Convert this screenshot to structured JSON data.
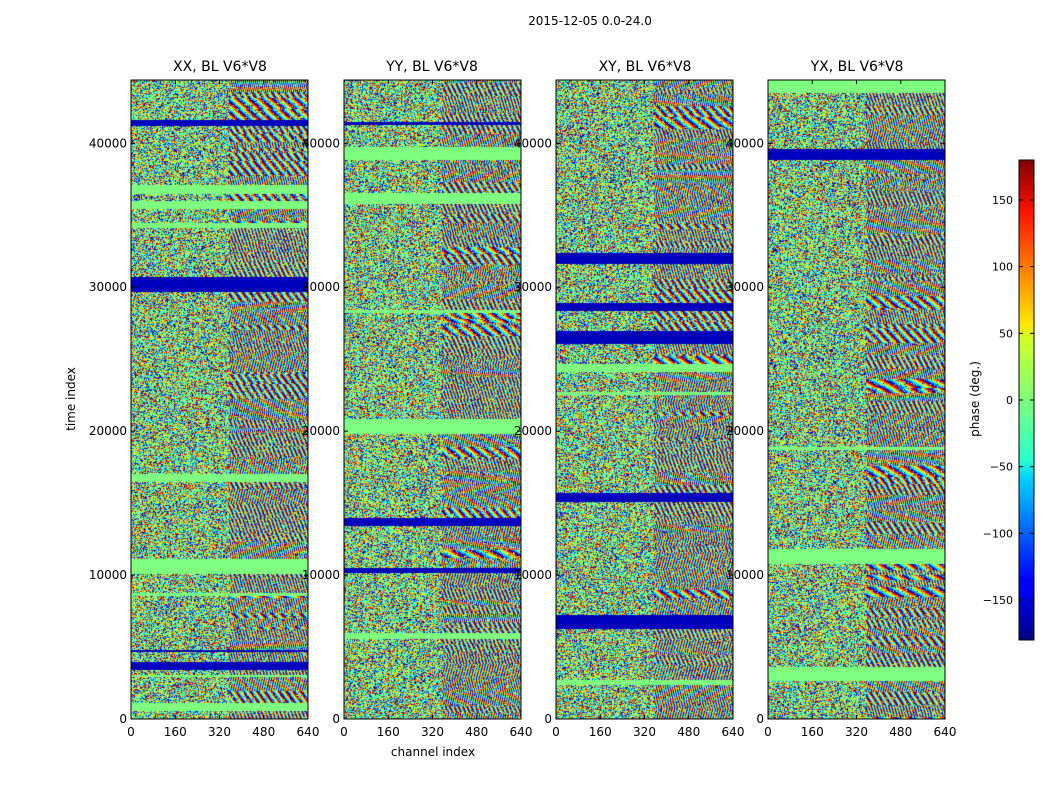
{
  "chart_data": {
    "type": "heatmap",
    "title": "2015-12-05 0.0-24.0",
    "xlabel": "channel index",
    "ylabel": "time index",
    "colorbar_label": "phase (deg.)",
    "colormap": "jet",
    "xlim": [
      0,
      640
    ],
    "ylim": [
      0,
      44400
    ],
    "xticks": [
      0,
      160,
      320,
      480,
      640
    ],
    "yticks": [
      0,
      10000,
      20000,
      30000,
      40000
    ],
    "colorbar_range": [
      -180,
      180
    ],
    "colorbar_ticks": [
      150,
      100,
      50,
      0,
      -50,
      -100,
      -150
    ],
    "colorbar_tick_labels": [
      "150",
      "100",
      "50",
      "0",
      "−50",
      "−100",
      "−150"
    ],
    "panels": [
      {
        "title": "XX, BL V6*V8",
        "product": "XX"
      },
      {
        "title": "YY, BL V6*V8",
        "product": "YY"
      },
      {
        "title": "XY, BL V6*V8",
        "product": "XY"
      },
      {
        "title": "YX, BL V6*V8",
        "product": "YX"
      }
    ]
  }
}
